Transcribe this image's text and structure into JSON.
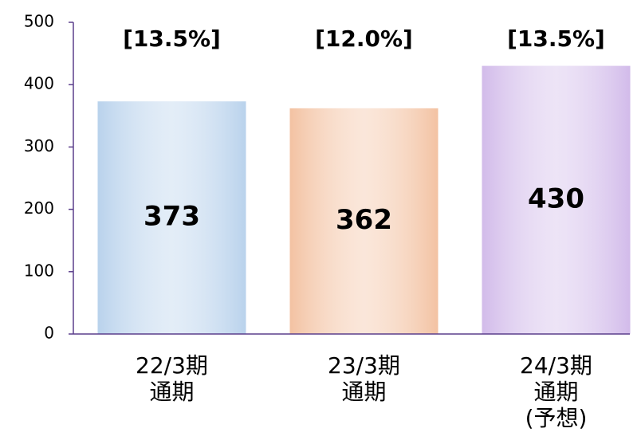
{
  "chart_data": {
    "type": "bar",
    "categories": [
      [
        "22/3期",
        "通期"
      ],
      [
        "23/3期",
        "通期"
      ],
      [
        "24/3期",
        "通期",
        "(予想)"
      ]
    ],
    "values": [
      373,
      362,
      430
    ],
    "annotations": [
      "[13.5%]",
      "[12.0%]",
      "[13.5%]"
    ],
    "colors": [
      "#b9d2ec",
      "#f3c2a2",
      "#d2bbea"
    ],
    "axis_color": "#5b3f8c",
    "ylim": [
      0,
      500
    ],
    "yticks": [
      0,
      100,
      200,
      300,
      400,
      500
    ],
    "grid": false
  }
}
